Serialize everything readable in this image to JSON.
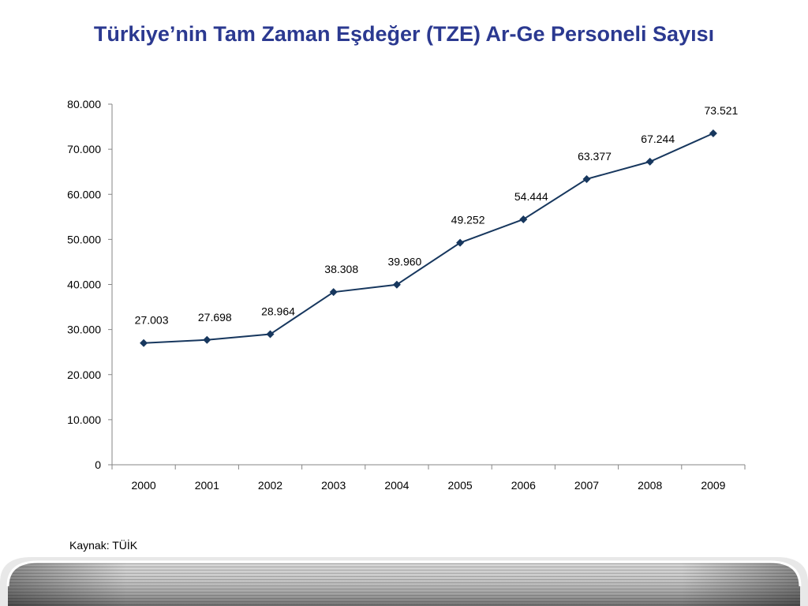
{
  "title": "Türkiye’nin Tam Zaman Eşdeğer (TZE) Ar-Ge Personeli Sayısı",
  "source": "Kaynak: TÜİK",
  "colors": {
    "title": "#2b3990",
    "series": "#17375e",
    "axis": "#868686"
  },
  "chart_data": {
    "type": "line",
    "categories": [
      "2000",
      "2001",
      "2002",
      "2003",
      "2004",
      "2005",
      "2006",
      "2007",
      "2008",
      "2009"
    ],
    "series": [
      {
        "values": [
          27003,
          27698,
          28964,
          38308,
          39960,
          49252,
          54444,
          63377,
          67244,
          73521
        ],
        "data_labels": [
          "27.003",
          "27.698",
          "28.964",
          "38.308",
          "39.960",
          "49.252",
          "54.444",
          "63.377",
          "67.244",
          "73.521"
        ],
        "marker": "diamond"
      }
    ],
    "ylim": [
      0,
      80000
    ],
    "yticks": [
      0,
      10000,
      20000,
      30000,
      40000,
      50000,
      60000,
      70000,
      80000
    ],
    "ytick_labels": [
      "0",
      "10.000",
      "20.000",
      "30.000",
      "40.000",
      "50.000",
      "60.000",
      "70.000",
      "80.000"
    ],
    "grid": false,
    "legend": "none"
  }
}
